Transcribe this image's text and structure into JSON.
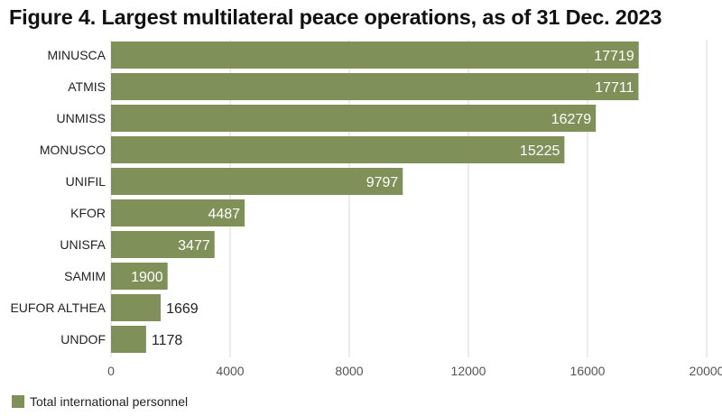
{
  "title": "Figure 4. Largest multilateral peace operations, as of 31 Dec. 2023",
  "legend": {
    "label": "Total international personnel"
  },
  "colors": {
    "bar": "#7f9158",
    "grid": "#d9d9d9",
    "axis_text": "#555555",
    "label_inside": "#ffffff",
    "label_outside": "#222222"
  },
  "chart_data": {
    "type": "bar",
    "orientation": "horizontal",
    "title": "Figure 4. Largest multilateral peace operations, as of 31 Dec. 2023",
    "categories": [
      "MINUSCA",
      "ATMIS",
      "UNMISS",
      "MONUSCO",
      "UNIFIL",
      "KFOR",
      "UNISFA",
      "SAMIM",
      "EUFOR ALTHEA",
      "UNDOF"
    ],
    "series": [
      {
        "name": "Total international personnel",
        "values": [
          17719,
          17711,
          16279,
          15225,
          9797,
          4487,
          3477,
          1900,
          1669,
          1178
        ]
      }
    ],
    "xlim": [
      0,
      20000
    ],
    "xticks": [
      0,
      4000,
      8000,
      12000,
      16000,
      20000
    ],
    "grid": "vertical",
    "legend": "bottom-left"
  }
}
